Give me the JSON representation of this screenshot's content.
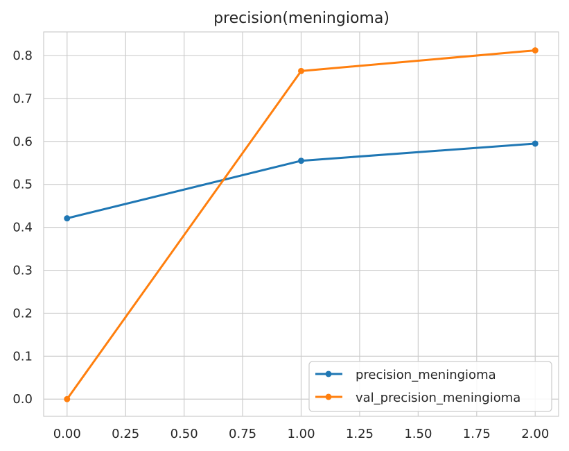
{
  "chart_data": {
    "type": "line",
    "title": "precision(meningioma)",
    "xlabel": "",
    "ylabel": "",
    "xlim": [
      -0.1,
      2.1
    ],
    "ylim": [
      -0.04,
      0.855
    ],
    "x_ticks": [
      0.0,
      0.25,
      0.5,
      0.75,
      1.0,
      1.25,
      1.5,
      1.75,
      2.0
    ],
    "x_tick_labels": [
      "0.00",
      "0.25",
      "0.50",
      "0.75",
      "1.00",
      "1.25",
      "1.50",
      "1.75",
      "2.00"
    ],
    "y_ticks": [
      0.0,
      0.1,
      0.2,
      0.3,
      0.4,
      0.5,
      0.6,
      0.7,
      0.8
    ],
    "y_tick_labels": [
      "0.0",
      "0.1",
      "0.2",
      "0.3",
      "0.4",
      "0.5",
      "0.6",
      "0.7",
      "0.8"
    ],
    "grid": true,
    "legend_position": "bottom-right",
    "series": [
      {
        "name": "precision_meningioma",
        "color": "#1f77b4",
        "x": [
          0,
          1,
          2
        ],
        "values": [
          0.421,
          0.555,
          0.595
        ]
      },
      {
        "name": "val_precision_meningioma",
        "color": "#ff7f0e",
        "x": [
          0,
          1,
          2
        ],
        "values": [
          0.0,
          0.764,
          0.812
        ]
      }
    ]
  }
}
